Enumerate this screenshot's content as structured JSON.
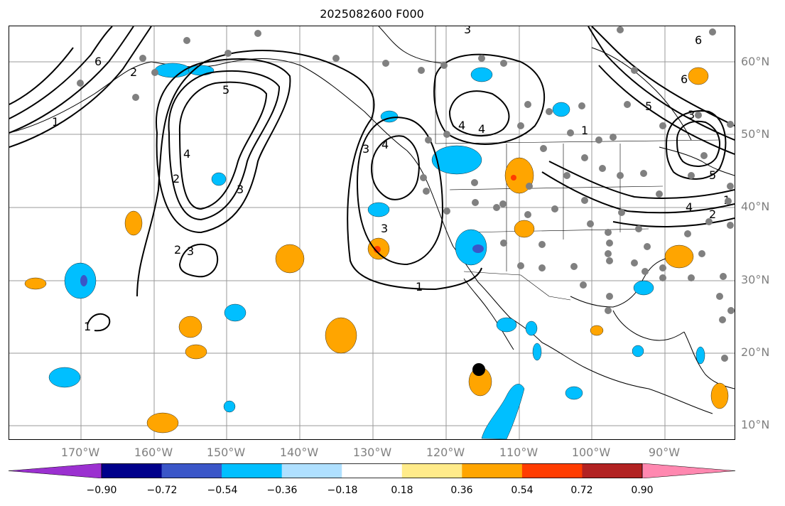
{
  "title": "2025082600 F000",
  "lat_labels": [
    "60°N",
    "50°N",
    "40°N",
    "30°N",
    "20°N",
    "10°N"
  ],
  "lon_labels": [
    "170°W",
    "160°W",
    "150°W",
    "140°W",
    "130°W",
    "120°W",
    "110°W",
    "100°W",
    "90°W"
  ],
  "colorbar": {
    "ticks": [
      "−0.90",
      "−0.72",
      "−0.54",
      "−0.36",
      "−0.18",
      "0.18",
      "0.36",
      "0.54",
      "0.72",
      "0.90"
    ],
    "colors": [
      "#9b30d0",
      "#00008b",
      "#3a56c8",
      "#00bfff",
      "#afe0ff",
      "#ffffff",
      "#ffeb8a",
      "#ffa500",
      "#ff3c00",
      "#b22222",
      "#ff88b0"
    ]
  },
  "contour_labels": [
    "6",
    "5",
    "4",
    "3",
    "2",
    "1",
    "1",
    "2",
    "3",
    "3",
    "3",
    "4",
    "4",
    "1",
    "1",
    "2",
    "3",
    "4",
    "5",
    "6",
    "6",
    "5",
    "4",
    "3",
    "2",
    "1"
  ],
  "colors": {
    "land": "#ffffff",
    "grid": "#9a9a9a",
    "station": "#808080",
    "contour": "#000000",
    "negative_fill": "#00bfff",
    "positive_fill": "#ffa500"
  }
}
